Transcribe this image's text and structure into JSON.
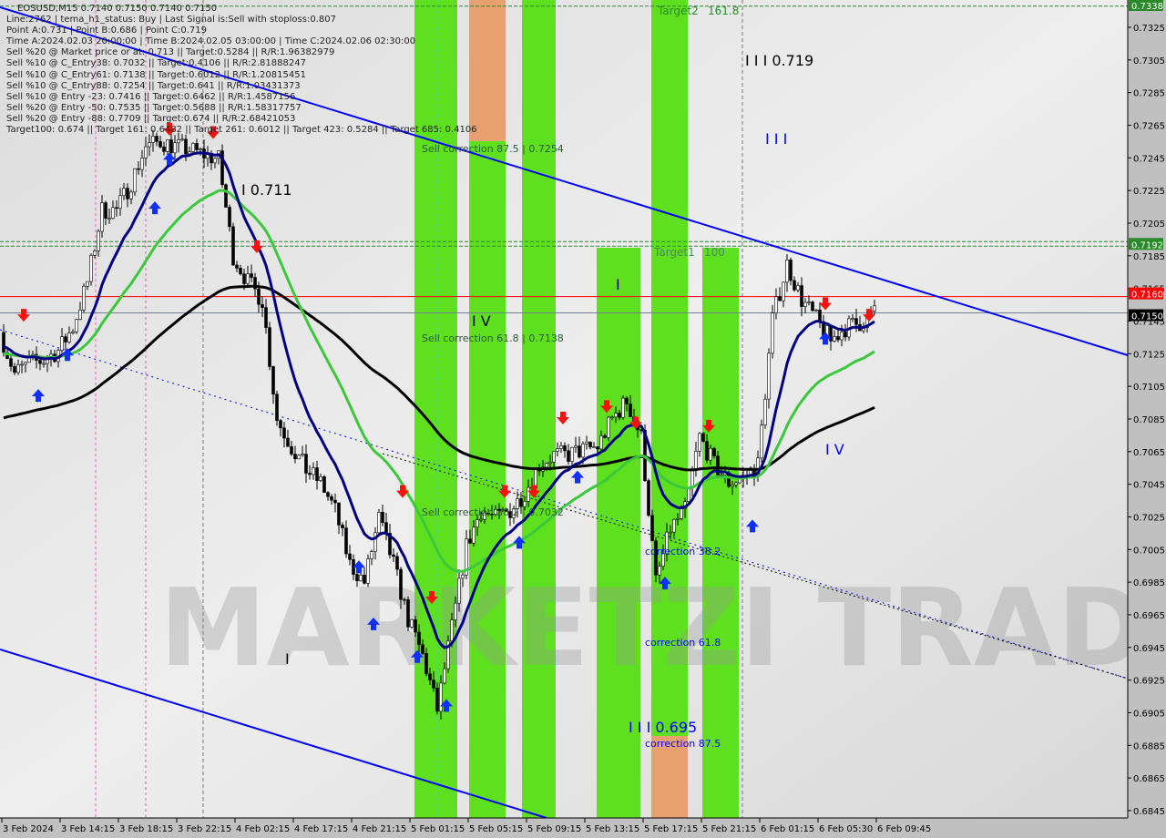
{
  "header": {
    "title": "EOSUSD,M15  0.7140 0.7150 0.7140 0.7150",
    "lines": [
      "Line:2762 | tema_h1_status: Buy | Last Signal is:Sell with stoploss:0.807",
      "Point A:0.731 | Point B:0.686 | Point C:0.719",
      "Time A:2024.02.03 20:00:00 | Time B:2024.02.05 03:00:00 | Time C:2024.02.06 02:30:00",
      "Sell %20 @ Market price or at: 0.713 || Target:0.5284 || R/R:1.96382979",
      "Sell %10 @ C_Entry38: 0.7032 || Target:0.4106 || R/R:2.81888247",
      "Sell %10 @ C_Entry61: 0.7138 || Target:0.6012 || R/R:1.20815451",
      "Sell %10 @ C_Entry88: 0.7254 || Target:0.641 || R/R:1.03431373",
      "Sell %10 @ Entry -23: 0.7416 || Target:0.6462 || R/R:1.4587156",
      "Sell %20 @ Entry -50: 0.7535 || Target:0.5688 || R/R:1.58317757",
      "Sell %20 @ Entry -88: 0.7709 || Target:0.674 || R/R:2.68421053",
      "Target100: 0.674 || Target 161: 0.6482 || Target 261: 0.6012 || Target 423: 0.5284 || Target 685: 0.4106"
    ]
  },
  "chart_data": {
    "type": "candlestick",
    "symbol": "EOSUSD",
    "timeframe": "M15",
    "ylim": [
      0.6835,
      0.7343
    ],
    "y_ticks": [
      "0.7325",
      "0.7305",
      "0.7285",
      "0.7265",
      "0.7245",
      "0.7225",
      "0.7205",
      "0.7185",
      "0.7165",
      "0.7145",
      "0.7125",
      "0.7105",
      "0.7085",
      "0.7065",
      "0.7045",
      "0.7025",
      "0.7005",
      "0.6985",
      "0.6965",
      "0.6945",
      "0.6925",
      "0.6905",
      "0.6885",
      "0.6865",
      "0.6845"
    ],
    "x_ticks": [
      "3 Feb 2024",
      "3 Feb 14:15",
      "3 Feb 18:15",
      "3 Feb 22:15",
      "4 Feb 02:15",
      "4 Feb 17:15",
      "4 Feb 21:15",
      "5 Feb 01:15",
      "5 Feb 05:15",
      "5 Feb 09:15",
      "5 Feb 13:15",
      "5 Feb 17:15",
      "5 Feb 21:15",
      "6 Feb 01:15",
      "6 Feb 05:30",
      "6 Feb 09:45"
    ],
    "hourly_close": [
      0.7138,
      0.7113,
      0.7119,
      0.7121,
      0.7127,
      0.7141,
      0.7169,
      0.7213,
      0.7213,
      0.723,
      0.7252,
      0.7255,
      0.7252,
      0.725,
      0.7247,
      0.7244,
      0.7185,
      0.7169,
      0.7158,
      0.7085,
      0.7068,
      0.7054,
      0.7046,
      0.7029,
      0.6996,
      0.6985,
      0.7024,
      0.6996,
      0.6962,
      0.694,
      0.6907,
      0.6957,
      0.7007,
      0.7029,
      0.7024,
      0.7029,
      0.704,
      0.7057,
      0.7063,
      0.7063,
      0.7066,
      0.7068,
      0.7085,
      0.7096,
      0.7074,
      0.6985,
      0.7018,
      0.7029,
      0.7074,
      0.7057,
      0.7046,
      0.7049,
      0.7057,
      0.7146,
      0.718,
      0.7158,
      0.7146,
      0.7133,
      0.7141,
      0.7144,
      0.715
    ],
    "price_labels": [
      {
        "value": 0.7338,
        "text": "0.7338",
        "color": "#2a8a2a"
      },
      {
        "value": 0.7192,
        "text": "0.7192",
        "color": "#2a8a2a"
      },
      {
        "value": 0.716,
        "text": "0.7160",
        "color": "#ff0000"
      },
      {
        "value": 0.715,
        "text": "0.7150",
        "color": "#000000"
      }
    ],
    "signals": [
      {
        "type": "sell",
        "hour": 1,
        "price": 0.7148
      },
      {
        "type": "sell",
        "hour": 11,
        "price": 0.7262
      },
      {
        "type": "sell",
        "hour": 14,
        "price": 0.726
      },
      {
        "type": "sell",
        "hour": 17,
        "price": 0.719
      },
      {
        "type": "sell",
        "hour": 27,
        "price": 0.704
      },
      {
        "type": "sell",
        "hour": 29,
        "price": 0.6975
      },
      {
        "type": "sell",
        "hour": 34,
        "price": 0.704
      },
      {
        "type": "sell",
        "hour": 36,
        "price": 0.704
      },
      {
        "type": "sell",
        "hour": 38,
        "price": 0.7085
      },
      {
        "type": "sell",
        "hour": 41,
        "price": 0.7092
      },
      {
        "type": "sell",
        "hour": 43,
        "price": 0.7082
      },
      {
        "type": "sell",
        "hour": 48,
        "price": 0.708
      },
      {
        "type": "sell",
        "hour": 56,
        "price": 0.7155
      },
      {
        "type": "sell",
        "hour": 59,
        "price": 0.7148
      },
      {
        "type": "buy",
        "hour": 2,
        "price": 0.71
      },
      {
        "type": "buy",
        "hour": 4,
        "price": 0.7125
      },
      {
        "type": "buy",
        "hour": 10,
        "price": 0.7215
      },
      {
        "type": "buy",
        "hour": 11,
        "price": 0.7245
      },
      {
        "type": "buy",
        "hour": 24,
        "price": 0.6995
      },
      {
        "type": "buy",
        "hour": 25,
        "price": 0.696
      },
      {
        "type": "buy",
        "hour": 28,
        "price": 0.694
      },
      {
        "type": "buy",
        "hour": 30,
        "price": 0.691
      },
      {
        "type": "buy",
        "hour": 35,
        "price": 0.701
      },
      {
        "type": "buy",
        "hour": 39,
        "price": 0.705
      },
      {
        "type": "buy",
        "hour": 45,
        "price": 0.6985
      },
      {
        "type": "buy",
        "hour": 51,
        "price": 0.702
      },
      {
        "type": "buy",
        "hour": 56,
        "price": 0.7135
      }
    ]
  },
  "annotations": {
    "sell_corr_875": "Sell correction 87.5 | 0.7254",
    "sell_corr_618": "Sell correction 61.8 | 0.7138",
    "sell_corr_382": "Sell correction 38.2 | 0.7032",
    "corr_382": "correction 38.2",
    "corr_618": "correction 61.8",
    "corr_875": "correction 87.5",
    "wave_719": "I I I 0.719",
    "wave_711": "I 0.711",
    "wave_695": "I I I 0.695",
    "wave_iii": "I I I",
    "wave_iv_a": "I V",
    "wave_iv_b": "I V",
    "wave_i": "I",
    "wave_i2": "I",
    "target2": "Target2",
    "target2_pct": "161.8",
    "target1": "Target1",
    "target1_pct": "100"
  },
  "watermark": "MARKETZI TRADE",
  "colors": {
    "band": "#5ee01e",
    "band_orange": "#e8a070",
    "trend": "#0000ff",
    "fast_ma": "#000080",
    "mid_ma": "#3cc83c",
    "slow_ma": "#000000",
    "level_red": "#ff0000",
    "level_gray": "#708090"
  }
}
